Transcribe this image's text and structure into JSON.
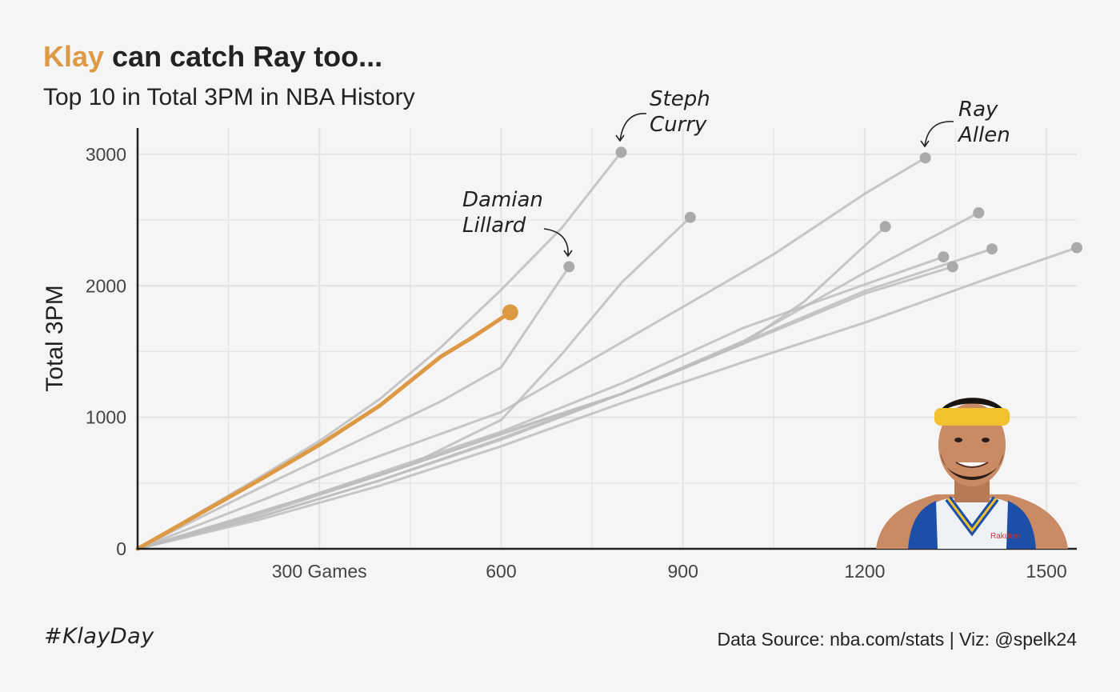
{
  "title": {
    "highlight": "Klay",
    "rest": " can catch Ray too..."
  },
  "subtitle": "Top 10 in Total 3PM in NBA History",
  "caption_left": "#KlayDay",
  "caption_right": "Data Source: nba.com/stats | Viz: @spelk24",
  "colors": {
    "background": "#f5f5f5",
    "highlight": "#dd9944",
    "others": "#bdbdbd",
    "endpoint": "#aaaaaa",
    "grid": "#e4e4e4",
    "axis": "#222222"
  },
  "chart_data": {
    "type": "line",
    "xlabel": "",
    "ylabel": "Total 3PM",
    "xlim": [
      0,
      1550
    ],
    "ylim": [
      0,
      3200
    ],
    "x_ticks": [
      {
        "value": 300,
        "label": "300 Games"
      },
      {
        "value": 600,
        "label": "600"
      },
      {
        "value": 900,
        "label": "900"
      },
      {
        "value": 1200,
        "label": "1200"
      },
      {
        "value": 1500,
        "label": "1500"
      }
    ],
    "y_ticks": [
      {
        "value": 0,
        "label": "0"
      },
      {
        "value": 1000,
        "label": "1000"
      },
      {
        "value": 2000,
        "label": "2000"
      },
      {
        "value": 3000,
        "label": "3000"
      }
    ],
    "grid": true,
    "highlight_series": "Klay",
    "series": [
      {
        "name": "Klay",
        "highlight": true,
        "x": [
          0,
          100,
          200,
          300,
          400,
          500,
          550,
          615
        ],
        "y": [
          0,
          260,
          520,
          790,
          1090,
          1460,
          1600,
          1798
        ]
      },
      {
        "name": "Steph Curry",
        "label": "Steph\nCurry",
        "x": [
          0,
          100,
          200,
          300,
          400,
          500,
          600,
          700,
          798
        ],
        "y": [
          0,
          270,
          540,
          820,
          1140,
          1530,
          1970,
          2440,
          3015
        ]
      },
      {
        "name": "Damian Lillard",
        "label": "Damian\nLillard",
        "x": [
          0,
          100,
          200,
          300,
          400,
          500,
          600,
          712
        ],
        "y": [
          0,
          230,
          460,
          680,
          900,
          1120,
          1380,
          2145
        ]
      },
      {
        "name": "Ray Allen",
        "label": "Ray\nAllen",
        "x": [
          0,
          150,
          300,
          450,
          600,
          750,
          900,
          1050,
          1200,
          1300
        ],
        "y": [
          0,
          270,
          540,
          790,
          1040,
          1440,
          1840,
          2240,
          2700,
          2973
        ]
      },
      {
        "name": "",
        "x": [
          0,
          150,
          300,
          450,
          600,
          700,
          800,
          912
        ],
        "y": [
          0,
          200,
          420,
          640,
          980,
          1480,
          2030,
          2520
        ]
      },
      {
        "name": "",
        "x": [
          0,
          200,
          400,
          600,
          800,
          1000,
          1200,
          1388
        ],
        "y": [
          0,
          280,
          560,
          870,
          1180,
          1580,
          2100,
          2555
        ]
      },
      {
        "name": "",
        "x": [
          0,
          200,
          400,
          600,
          800,
          1000,
          1100,
          1234
        ],
        "y": [
          0,
          260,
          560,
          880,
          1180,
          1560,
          1880,
          2450
        ]
      },
      {
        "name": "",
        "x": [
          0,
          200,
          400,
          600,
          800,
          1000,
          1200,
          1410
        ],
        "y": [
          0,
          240,
          520,
          830,
          1180,
          1570,
          1960,
          2280
        ]
      },
      {
        "name": "",
        "x": [
          0,
          200,
          400,
          600,
          800,
          1000,
          1200,
          1330
        ],
        "y": [
          0,
          270,
          580,
          890,
          1260,
          1680,
          2010,
          2220
        ]
      },
      {
        "name": "",
        "x": [
          0,
          200,
          400,
          600,
          800,
          1000,
          1200,
          1345
        ],
        "y": [
          0,
          240,
          520,
          840,
          1180,
          1560,
          1940,
          2145
        ]
      },
      {
        "name": "",
        "x": [
          0,
          200,
          400,
          600,
          800,
          1000,
          1200,
          1400,
          1550
        ],
        "y": [
          0,
          220,
          480,
          780,
          1110,
          1420,
          1720,
          2050,
          2290
        ]
      }
    ]
  }
}
